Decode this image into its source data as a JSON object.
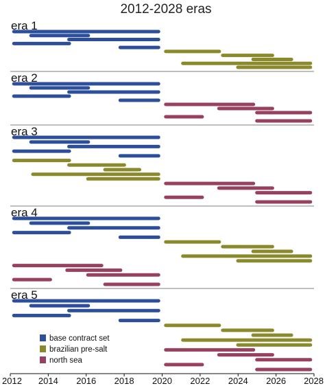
{
  "chart_data": {
    "type": "timeline",
    "title": "2012-2028 eras",
    "xlim": [
      2012,
      2028
    ],
    "xticks": [
      2012,
      2014,
      2016,
      2018,
      2020,
      2022,
      2024,
      2026,
      2028
    ],
    "legend": [
      {
        "name": "base contract set",
        "color": "#2d4f9b"
      },
      {
        "name": "brazilian pre-salt",
        "color": "#8a8a2d"
      },
      {
        "name": "north sea",
        "color": "#97405f"
      }
    ],
    "eras": [
      {
        "label": "era 1",
        "bars": [
          {
            "series": "base contract set",
            "start": 2012.1,
            "end": 2019.9
          },
          {
            "series": "base contract set",
            "start": 2013.0,
            "end": 2016.2
          },
          {
            "series": "base contract set",
            "start": 2015.0,
            "end": 2019.9
          },
          {
            "series": "base contract set",
            "start": 2012.1,
            "end": 2015.2
          },
          {
            "series": "base contract set",
            "start": 2017.7,
            "end": 2019.9
          },
          {
            "series": "brazilian pre-salt",
            "start": 2020.1,
            "end": 2023.1
          },
          {
            "series": "brazilian pre-salt",
            "start": 2023.1,
            "end": 2025.9
          },
          {
            "series": "brazilian pre-salt",
            "start": 2024.7,
            "end": 2026.9
          },
          {
            "series": "brazilian pre-salt",
            "start": 2021.0,
            "end": 2027.9
          },
          {
            "series": "brazilian pre-salt",
            "start": 2023.9,
            "end": 2027.9
          }
        ]
      },
      {
        "label": "era 2",
        "bars": [
          {
            "series": "base contract set",
            "start": 2012.1,
            "end": 2019.9
          },
          {
            "series": "base contract set",
            "start": 2013.0,
            "end": 2016.2
          },
          {
            "series": "base contract set",
            "start": 2015.0,
            "end": 2019.9
          },
          {
            "series": "base contract set",
            "start": 2012.1,
            "end": 2015.2
          },
          {
            "series": "base contract set",
            "start": 2017.7,
            "end": 2019.9
          },
          {
            "series": "north sea",
            "start": 2020.1,
            "end": 2024.9
          },
          {
            "series": "north sea",
            "start": 2022.9,
            "end": 2025.9
          },
          {
            "series": "north sea",
            "start": 2024.9,
            "end": 2027.9
          },
          {
            "series": "north sea",
            "start": 2020.1,
            "end": 2022.2
          },
          {
            "series": "north sea",
            "start": 2024.9,
            "end": 2027.9
          }
        ]
      },
      {
        "label": "era 3",
        "bars": [
          {
            "series": "base contract set",
            "start": 2012.1,
            "end": 2019.9
          },
          {
            "series": "base contract set",
            "start": 2013.0,
            "end": 2016.2
          },
          {
            "series": "base contract set",
            "start": 2015.0,
            "end": 2019.9
          },
          {
            "series": "base contract set",
            "start": 2012.1,
            "end": 2015.2
          },
          {
            "series": "base contract set",
            "start": 2017.7,
            "end": 2019.9
          },
          {
            "series": "brazilian pre-salt",
            "start": 2012.1,
            "end": 2015.2
          },
          {
            "series": "brazilian pre-salt",
            "start": 2015.0,
            "end": 2018.1
          },
          {
            "series": "brazilian pre-salt",
            "start": 2016.9,
            "end": 2018.9
          },
          {
            "series": "brazilian pre-salt",
            "start": 2013.1,
            "end": 2019.9
          },
          {
            "series": "brazilian pre-salt",
            "start": 2016.0,
            "end": 2019.9
          },
          {
            "series": "north sea",
            "start": 2020.1,
            "end": 2024.9
          },
          {
            "series": "north sea",
            "start": 2022.9,
            "end": 2025.9
          },
          {
            "series": "north sea",
            "start": 2024.9,
            "end": 2027.9
          },
          {
            "series": "north sea",
            "start": 2020.1,
            "end": 2022.2
          },
          {
            "series": "north sea",
            "start": 2024.9,
            "end": 2027.9
          }
        ]
      },
      {
        "label": "era 4",
        "bars": [
          {
            "series": "base contract set",
            "start": 2012.1,
            "end": 2019.9
          },
          {
            "series": "base contract set",
            "start": 2013.0,
            "end": 2016.2
          },
          {
            "series": "base contract set",
            "start": 2015.0,
            "end": 2019.9
          },
          {
            "series": "base contract set",
            "start": 2012.1,
            "end": 2015.2
          },
          {
            "series": "base contract set",
            "start": 2017.7,
            "end": 2019.9
          },
          {
            "series": "brazilian pre-salt",
            "start": 2020.1,
            "end": 2023.1
          },
          {
            "series": "brazilian pre-salt",
            "start": 2023.1,
            "end": 2025.9
          },
          {
            "series": "brazilian pre-salt",
            "start": 2024.7,
            "end": 2026.9
          },
          {
            "series": "brazilian pre-salt",
            "start": 2021.0,
            "end": 2027.9
          },
          {
            "series": "brazilian pre-salt",
            "start": 2023.9,
            "end": 2027.9
          },
          {
            "series": "north sea",
            "start": 2012.1,
            "end": 2016.9
          },
          {
            "series": "north sea",
            "start": 2014.9,
            "end": 2017.9
          },
          {
            "series": "north sea",
            "start": 2016.0,
            "end": 2019.9
          },
          {
            "series": "north sea",
            "start": 2012.1,
            "end": 2014.2
          },
          {
            "series": "north sea",
            "start": 2016.9,
            "end": 2019.9
          }
        ]
      },
      {
        "label": "era 5",
        "bars": [
          {
            "series": "base contract set",
            "start": 2012.1,
            "end": 2019.9
          },
          {
            "series": "base contract set",
            "start": 2013.0,
            "end": 2016.2
          },
          {
            "series": "base contract set",
            "start": 2015.0,
            "end": 2019.9
          },
          {
            "series": "base contract set",
            "start": 2012.1,
            "end": 2015.2
          },
          {
            "series": "base contract set",
            "start": 2017.7,
            "end": 2019.9
          },
          {
            "series": "brazilian pre-salt",
            "start": 2020.1,
            "end": 2023.1
          },
          {
            "series": "brazilian pre-salt",
            "start": 2023.1,
            "end": 2025.9
          },
          {
            "series": "brazilian pre-salt",
            "start": 2024.7,
            "end": 2026.9
          },
          {
            "series": "brazilian pre-salt",
            "start": 2021.0,
            "end": 2027.9
          },
          {
            "series": "brazilian pre-salt",
            "start": 2023.9,
            "end": 2027.9
          },
          {
            "series": "north sea",
            "start": 2020.1,
            "end": 2024.9
          },
          {
            "series": "north sea",
            "start": 2022.9,
            "end": 2025.9
          },
          {
            "series": "north sea",
            "start": 2024.9,
            "end": 2027.9
          },
          {
            "series": "north sea",
            "start": 2020.1,
            "end": 2022.2
          },
          {
            "series": "north sea",
            "start": 2024.9,
            "end": 2027.9
          }
        ]
      }
    ]
  }
}
